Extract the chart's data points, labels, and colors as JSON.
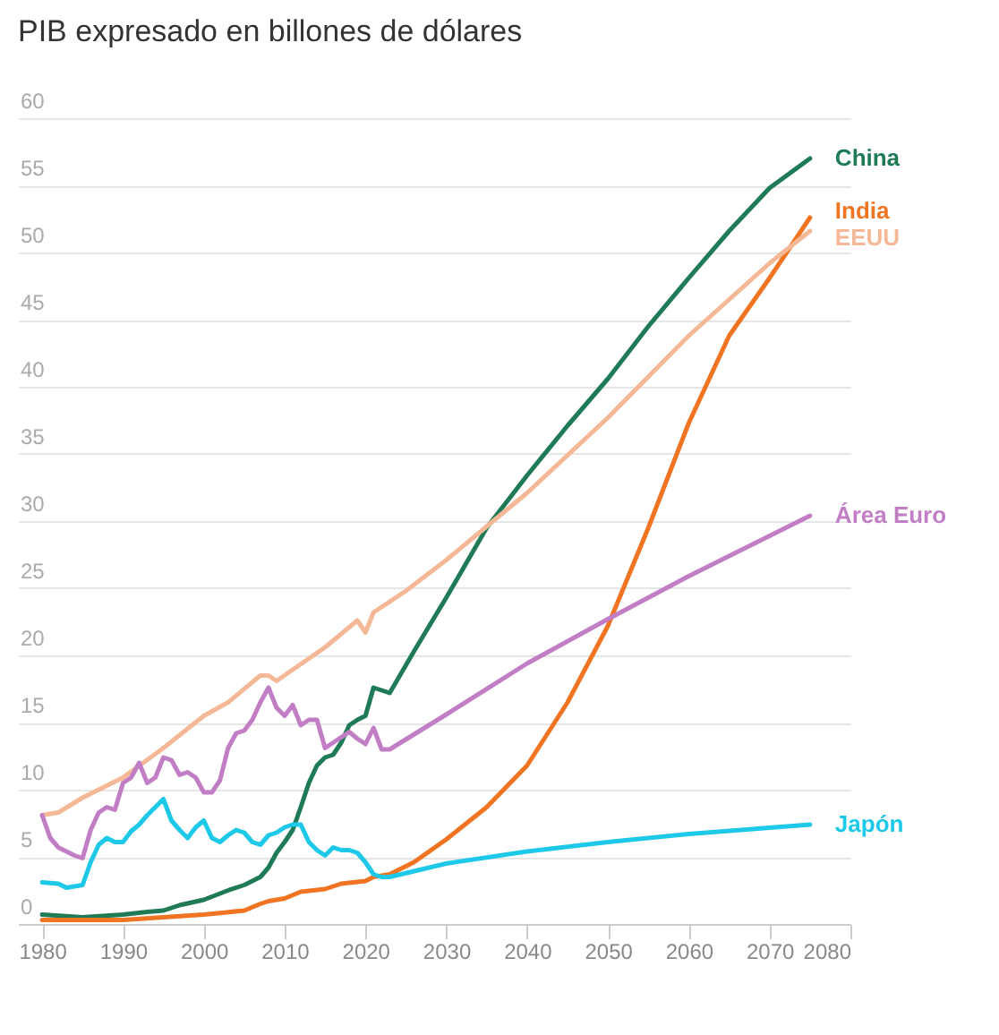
{
  "chart_data": {
    "type": "line",
    "title": "PIB expresado en billones de dólares",
    "xlim": [
      1977,
      2080
    ],
    "xticks": [
      1980,
      1990,
      2000,
      2010,
      2020,
      2030,
      2040,
      2050,
      2060,
      2070,
      2080
    ],
    "ylim": [
      0,
      60
    ],
    "yticks": [
      0,
      5,
      10,
      15,
      20,
      25,
      30,
      35,
      40,
      45,
      50,
      55,
      60
    ],
    "grid": "y",
    "series": [
      {
        "name": "China",
        "color": "#1e7b55",
        "x": [
          1980,
          1985,
          1990,
          1993,
          1995,
          1997,
          2000,
          2003,
          2005,
          2007,
          2008,
          2009,
          2010,
          2011,
          2012,
          2013,
          2014,
          2015,
          2016,
          2017,
          2018,
          2019,
          2020,
          2021,
          2022,
          2023,
          2026,
          2030,
          2035,
          2040,
          2045,
          2050,
          2055,
          2060,
          2065,
          2070,
          2075
        ],
        "values": [
          0.7,
          0.5,
          0.7,
          0.9,
          1.0,
          1.4,
          1.8,
          2.5,
          2.9,
          3.5,
          4.2,
          5.3,
          6.1,
          7.0,
          8.7,
          10.5,
          11.8,
          12.4,
          12.6,
          13.5,
          14.8,
          15.2,
          15.5,
          17.6,
          17.4,
          17.2,
          20.3,
          24.3,
          29.5,
          33.4,
          37.1,
          40.6,
          44.5,
          48.1,
          51.6,
          54.8,
          57.0
        ]
      },
      {
        "name": "India",
        "color": "#f07422",
        "x": [
          1980,
          1990,
          2000,
          2005,
          2007,
          2008,
          2010,
          2012,
          2015,
          2017,
          2020,
          2021,
          2023,
          2026,
          2030,
          2035,
          2040,
          2045,
          2050,
          2055,
          2060,
          2065,
          2070,
          2075
        ],
        "values": [
          0.3,
          0.3,
          0.7,
          1.0,
          1.5,
          1.7,
          1.9,
          2.4,
          2.6,
          3.0,
          3.2,
          3.5,
          3.7,
          4.6,
          6.3,
          8.7,
          11.8,
          16.5,
          22.2,
          29.5,
          37.3,
          43.8,
          48.1,
          52.6
        ]
      },
      {
        "name": "EEUU",
        "color": "#f5b896",
        "x": [
          1980,
          1982,
          1985,
          1990,
          1995,
          2000,
          2003,
          2007,
          2008,
          2009,
          2015,
          2019,
          2020,
          2021,
          2025,
          2030,
          2035,
          2040,
          2050,
          2060,
          2070,
          2075
        ],
        "values": [
          8.1,
          8.3,
          9.4,
          10.9,
          13.1,
          15.5,
          16.5,
          18.5,
          18.5,
          18.1,
          20.6,
          22.6,
          21.7,
          23.2,
          24.8,
          27.1,
          29.6,
          32.1,
          37.7,
          43.8,
          49.2,
          51.6
        ]
      },
      {
        "name": "Área Euro",
        "color": "#c17ec5",
        "x": [
          1980,
          1981,
          1982,
          1984,
          1985,
          1986,
          1987,
          1988,
          1989,
          1990,
          1991,
          1992,
          1993,
          1994,
          1995,
          1996,
          1997,
          1998,
          1999,
          2000,
          2001,
          2002,
          2003,
          2004,
          2005,
          2006,
          2007,
          2008,
          2009,
          2010,
          2011,
          2012,
          2013,
          2014,
          2015,
          2016,
          2017,
          2018,
          2019,
          2020,
          2021,
          2022,
          2023,
          2030,
          2040,
          2050,
          2060,
          2075
        ],
        "values": [
          8.1,
          6.4,
          5.7,
          5.1,
          4.9,
          7.0,
          8.3,
          8.7,
          8.5,
          10.5,
          10.9,
          12.0,
          10.5,
          10.9,
          12.4,
          12.2,
          11.1,
          11.3,
          10.9,
          9.8,
          9.8,
          10.7,
          13.1,
          14.2,
          14.4,
          15.2,
          16.5,
          17.6,
          16.1,
          15.5,
          16.3,
          14.8,
          15.2,
          15.2,
          13.1,
          13.5,
          13.9,
          14.3,
          13.8,
          13.4,
          14.6,
          13.0,
          13.0,
          15.6,
          19.4,
          22.7,
          25.9,
          30.4
        ]
      },
      {
        "name": "Japón",
        "color": "#1ec8e8",
        "x": [
          1980,
          1982,
          1983,
          1985,
          1986,
          1987,
          1988,
          1989,
          1990,
          1991,
          1992,
          1993,
          1994,
          1995,
          1996,
          1997,
          1998,
          1999,
          2000,
          2001,
          2002,
          2003,
          2004,
          2005,
          2006,
          2007,
          2008,
          2009,
          2010,
          2011,
          2012,
          2013,
          2014,
          2015,
          2016,
          2017,
          2018,
          2019,
          2020,
          2021,
          2022,
          2023,
          2030,
          2040,
          2050,
          2060,
          2075
        ],
        "values": [
          3.1,
          3.0,
          2.7,
          2.9,
          4.6,
          5.9,
          6.4,
          6.1,
          6.1,
          6.9,
          7.4,
          8.1,
          8.7,
          9.3,
          7.7,
          7.0,
          6.4,
          7.2,
          7.7,
          6.4,
          6.1,
          6.6,
          7.0,
          6.8,
          6.1,
          5.9,
          6.6,
          6.8,
          7.2,
          7.4,
          7.4,
          6.1,
          5.5,
          5.1,
          5.7,
          5.5,
          5.5,
          5.3,
          4.6,
          3.7,
          3.5,
          3.5,
          4.5,
          5.4,
          6.1,
          6.7,
          7.4
        ]
      }
    ]
  }
}
